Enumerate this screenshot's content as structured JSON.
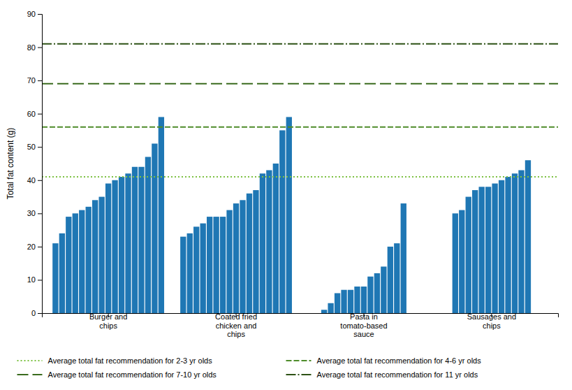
{
  "chart_data": {
    "type": "bar",
    "categories": [
      "Burger and\nchips",
      "Coated fried\nchicken and\nchips",
      "Pasta in\ntomato-based\nsauce",
      "Sausages and\nchips"
    ],
    "values": [
      [
        21,
        24,
        29,
        30,
        31,
        32,
        34,
        35,
        39,
        40,
        41,
        42,
        44,
        44,
        47,
        51,
        59
      ],
      [
        23,
        24,
        26,
        27,
        29,
        29,
        29,
        31,
        33,
        34,
        36,
        37,
        42,
        43,
        45,
        55,
        59
      ],
      [
        1,
        3,
        6,
        7,
        7,
        8,
        8,
        11,
        12,
        14,
        20,
        21,
        33
      ],
      [
        30,
        31,
        35,
        37,
        38,
        38,
        39,
        40,
        41,
        42,
        43,
        46
      ]
    ],
    "ylabel": "Total fat content (g)",
    "ylim": [
      0,
      90
    ],
    "yticks": [
      0,
      10,
      20,
      30,
      40,
      50,
      60,
      70,
      80,
      90
    ],
    "grid": false,
    "legend": "bottom",
    "ref_lines": [
      {
        "name": "Average total fat recommendation for 2-3 yr olds",
        "value": 41,
        "color": "#7dc142",
        "line_style": "dotted"
      },
      {
        "name": "Average total fat recommendation for 4-6 yr olds",
        "value": 56,
        "color": "#4e8c2a",
        "line_style": "dashed"
      },
      {
        "name": "Average total fat recommendation for 7-10 yr olds",
        "value": 69,
        "color": "#3a6b1e",
        "line_style": "longdashed"
      },
      {
        "name": "Average total fat recommendation for 11 yr olds",
        "value": 81,
        "color": "#2d5215",
        "line_style": "dashdot"
      }
    ]
  }
}
